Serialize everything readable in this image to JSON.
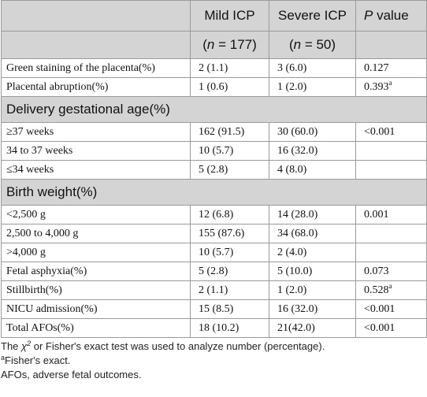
{
  "table": {
    "header": {
      "col1": "Mild ICP",
      "col2": "Severe ICP",
      "col3_italic": "P",
      "col3_rest": " value",
      "n_mild_var": "n",
      "n_mild_rest": " = 177)",
      "n_severe_var": "n",
      "n_severe_rest": " = 50)",
      "open_paren": "("
    },
    "rows": [
      {
        "type": "row",
        "label": "Green staining of the placenta(%)",
        "mild": "2 (1.1)",
        "severe": "3 (6.0)",
        "p": "0.127",
        "sup": ""
      },
      {
        "type": "row",
        "label": "Placental abruption(%)",
        "mild": "1 (0.6)",
        "severe": "1 (2.0)",
        "p": "0.393",
        "sup": "a"
      },
      {
        "type": "section",
        "label": "Delivery gestational age(%)"
      },
      {
        "type": "row",
        "label": "≥37 weeks",
        "mild": "162 (91.5)",
        "severe": "30 (60.0)",
        "p": "<0.001",
        "sup": ""
      },
      {
        "type": "row",
        "label": "34 to 37 weeks",
        "mild": "10 (5.7)",
        "severe": "16 (32.0)",
        "p": "",
        "sup": ""
      },
      {
        "type": "row",
        "label": "≤34 weeks",
        "mild": "5 (2.8)",
        "severe": "4 (8.0)",
        "p": "",
        "sup": ""
      },
      {
        "type": "section",
        "label": "Birth weight(%)"
      },
      {
        "type": "row",
        "label": "<2,500 g",
        "mild": "12 (6.8)",
        "severe": "14 (28.0)",
        "p": "0.001",
        "sup": ""
      },
      {
        "type": "row",
        "label": "2,500 to 4,000 g",
        "mild": "155 (87.6)",
        "severe": "34 (68.0)",
        "p": "",
        "sup": ""
      },
      {
        "type": "row",
        "label": ">4,000 g",
        "mild": "10 (5.7)",
        "severe": "2 (4.0)",
        "p": "",
        "sup": ""
      },
      {
        "type": "row",
        "label": "Fetal asphyxia(%)",
        "mild": "5 (2.8)",
        "severe": "5 (10.0)",
        "p": "0.073",
        "sup": ""
      },
      {
        "type": "row",
        "label": "Stillbirth(%)",
        "mild": "2 (1.1)",
        "severe": "1 (2.0)",
        "p": "0.528",
        "sup": "a"
      },
      {
        "type": "row",
        "label": "NICU admission(%)",
        "mild": "15 (8.5)",
        "severe": "16 (32.0)",
        "p": "<0.001",
        "sup": ""
      },
      {
        "type": "row",
        "label": "Total AFOs(%)",
        "mild": "18 (10.2)",
        "severe": "21(42.0)",
        "p": "<0.001",
        "sup": ""
      }
    ]
  },
  "footnotes": {
    "line1_pre": "The ",
    "line1_chi": "χ",
    "line1_chi_sup": "2",
    "line1_post": " or Fisher's exact test was used to analyze number (percentage).",
    "line2_sup": "a",
    "line2_text": "Fisher's exact.",
    "line3": "AFOs, adverse fetal outcomes."
  }
}
